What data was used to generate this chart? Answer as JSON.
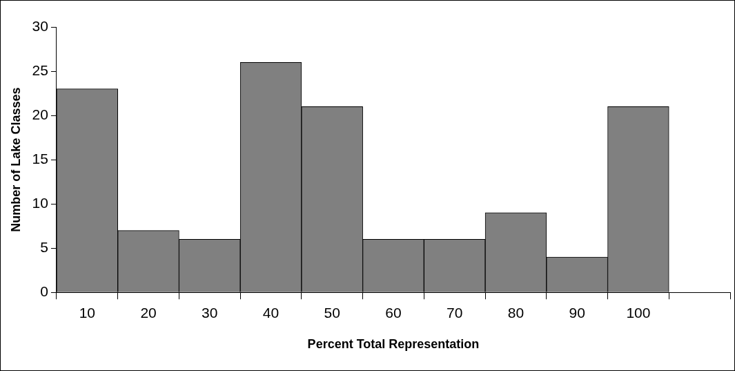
{
  "chart_data": {
    "type": "bar",
    "xlabel": "Percent Total Representation",
    "ylabel": "Number of Lake Classes",
    "categories": [
      "10",
      "20",
      "30",
      "40",
      "50",
      "60",
      "70",
      "80",
      "90",
      "100",
      null
    ],
    "values": [
      23,
      7,
      6,
      26,
      21,
      6,
      6,
      9,
      4,
      21,
      null
    ],
    "color": "#808080",
    "ylim": [
      0,
      30
    ],
    "yticks": [
      0,
      5,
      10,
      15,
      20,
      25,
      30
    ]
  }
}
